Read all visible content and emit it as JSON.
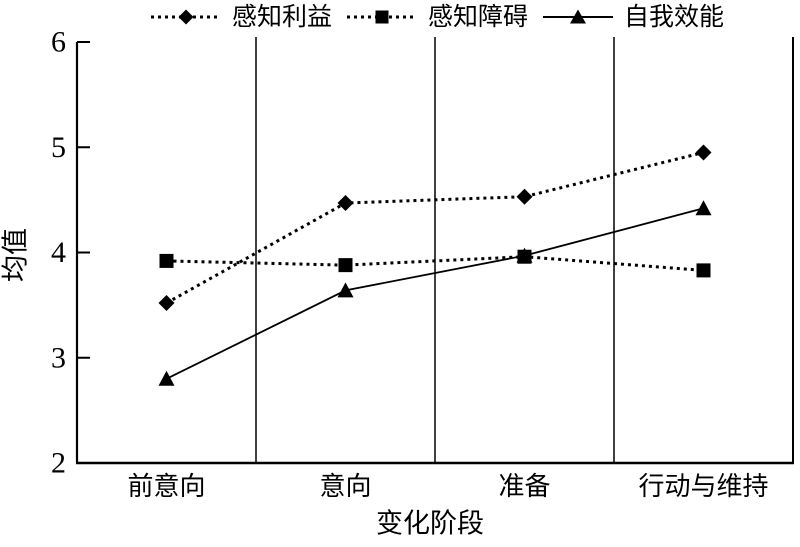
{
  "figure": {
    "background": "#ffffff",
    "ink_color": "#000000"
  },
  "chart_data": {
    "type": "line",
    "title": "",
    "xlabel": "变化阶段",
    "ylabel": "均值",
    "categories": [
      "前意向",
      "意向",
      "准备",
      "行动与维持"
    ],
    "series": [
      {
        "name": "感知利益",
        "marker": "diamond",
        "line": "dotted",
        "values": [
          3.52,
          4.47,
          4.53,
          4.95
        ]
      },
      {
        "name": "感知障碍",
        "marker": "square",
        "line": "dotted",
        "values": [
          3.92,
          3.88,
          3.96,
          3.83
        ]
      },
      {
        "name": "自我效能",
        "marker": "triangle",
        "line": "solid",
        "values": [
          2.8,
          3.64,
          3.97,
          4.42
        ]
      }
    ],
    "legend": [
      "感知利益",
      "感知障碍",
      "自我效能"
    ],
    "legend_position": "top",
    "ylim": [
      2,
      6
    ],
    "yticks": [
      2,
      3,
      4,
      5,
      6
    ],
    "grid": "vertical-category-dividers",
    "color": "#000000"
  }
}
